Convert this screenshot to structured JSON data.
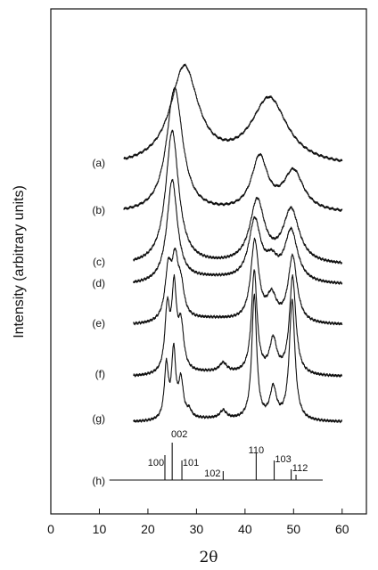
{
  "chart_data": {
    "type": "line",
    "xlabel": "2θ",
    "ylabel": "Intensity (arbitrary units)",
    "xlim": [
      0,
      65
    ],
    "xticks": [
      0,
      10,
      20,
      30,
      40,
      50,
      60
    ],
    "xtick_labels": [
      "0",
      "10",
      "20",
      "30",
      "40",
      "50",
      "60"
    ],
    "grid": false,
    "series": [
      {
        "name": "(a)",
        "x_range": [
          15,
          60
        ],
        "peaks": [
          {
            "x": 27.5,
            "height": 110,
            "width": 3.5
          },
          {
            "x": 45.0,
            "height": 75,
            "width": 4.5
          }
        ]
      },
      {
        "name": "(b)",
        "x_range": [
          15,
          60
        ],
        "peaks": [
          {
            "x": 25.5,
            "height": 140,
            "width": 2.0
          },
          {
            "x": 43.0,
            "height": 60,
            "width": 2.0
          },
          {
            "x": 50.0,
            "height": 45,
            "width": 2.5
          }
        ]
      },
      {
        "name": "(c)",
        "x_range": [
          17,
          60
        ],
        "peaks": [
          {
            "x": 25.0,
            "height": 150,
            "width": 1.6
          },
          {
            "x": 42.5,
            "height": 70,
            "width": 1.8
          },
          {
            "x": 49.5,
            "height": 60,
            "width": 2.0
          }
        ]
      },
      {
        "name": "(d)",
        "x_range": [
          17,
          60
        ],
        "peaks": [
          {
            "x": 25.0,
            "height": 115,
            "width": 1.3
          },
          {
            "x": 42.0,
            "height": 68,
            "width": 1.5
          },
          {
            "x": 45.5,
            "height": 20,
            "width": 1.5
          },
          {
            "x": 49.5,
            "height": 58,
            "width": 1.6
          }
        ]
      },
      {
        "name": "(e)",
        "x_range": [
          17,
          60
        ],
        "peaks": [
          {
            "x": 24.2,
            "height": 55,
            "width": 0.8
          },
          {
            "x": 25.6,
            "height": 60,
            "width": 0.8
          },
          {
            "x": 26.8,
            "height": 32,
            "width": 0.8
          },
          {
            "x": 42.0,
            "height": 90,
            "width": 1.0
          },
          {
            "x": 45.5,
            "height": 28,
            "width": 1.2
          },
          {
            "x": 49.8,
            "height": 75,
            "width": 1.1
          }
        ]
      },
      {
        "name": "(f)",
        "x_range": [
          17,
          60
        ],
        "peaks": [
          {
            "x": 24.0,
            "height": 70,
            "width": 0.6
          },
          {
            "x": 25.4,
            "height": 90,
            "width": 0.6
          },
          {
            "x": 26.8,
            "height": 50,
            "width": 0.7
          },
          {
            "x": 35.5,
            "height": 10,
            "width": 0.9
          },
          {
            "x": 41.9,
            "height": 115,
            "width": 0.7
          },
          {
            "x": 45.8,
            "height": 38,
            "width": 0.9
          },
          {
            "x": 49.8,
            "height": 110,
            "width": 0.8
          }
        ]
      },
      {
        "name": "(g)",
        "x_range": [
          17,
          60
        ],
        "peaks": [
          {
            "x": 23.8,
            "height": 60,
            "width": 0.5
          },
          {
            "x": 25.3,
            "height": 75,
            "width": 0.5
          },
          {
            "x": 26.8,
            "height": 42,
            "width": 0.6
          },
          {
            "x": 28.5,
            "height": 8,
            "width": 0.6
          },
          {
            "x": 35.5,
            "height": 9,
            "width": 0.8
          },
          {
            "x": 41.9,
            "height": 140,
            "width": 0.6
          },
          {
            "x": 45.8,
            "height": 35,
            "width": 0.8
          },
          {
            "x": 49.7,
            "height": 135,
            "width": 0.7
          }
        ]
      }
    ],
    "reference": {
      "name": "(h)",
      "x_range": [
        15,
        56
      ],
      "sticks": [
        {
          "x": 23.5,
          "height": 28,
          "label": "100"
        },
        {
          "x": 25.0,
          "height": 42,
          "label": "002"
        },
        {
          "x": 27.0,
          "height": 22,
          "label": "101"
        },
        {
          "x": 35.5,
          "height": 10,
          "label": "102"
        },
        {
          "x": 42.3,
          "height": 30,
          "label": "110"
        },
        {
          "x": 46.0,
          "height": 22,
          "label": "103"
        },
        {
          "x": 49.5,
          "height": 12,
          "label": "112"
        },
        {
          "x": 50.5,
          "height": 6,
          "label": ""
        }
      ]
    }
  }
}
